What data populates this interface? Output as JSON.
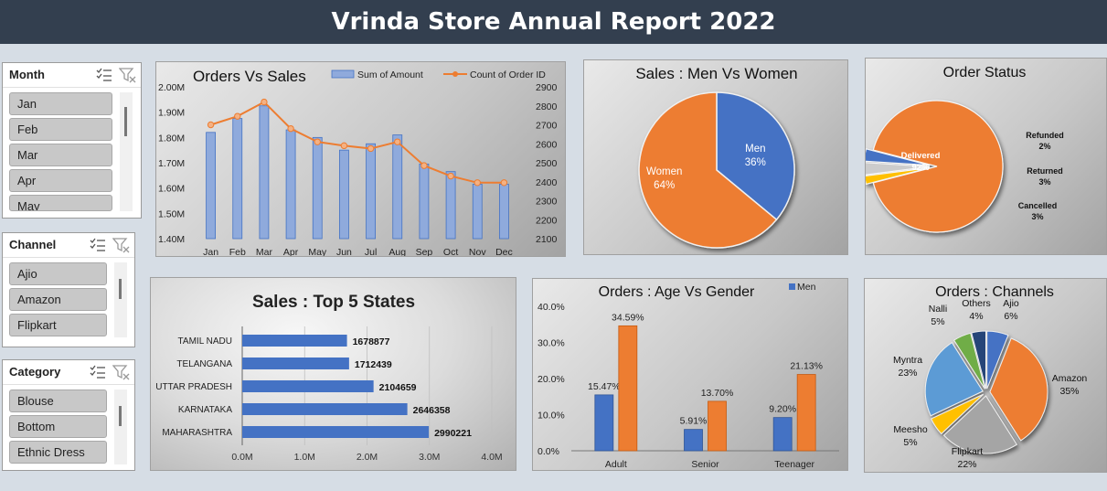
{
  "header": {
    "title": "Vrinda Store Annual Report 2022"
  },
  "slicers": {
    "month": {
      "title": "Month",
      "items": [
        "Jan",
        "Feb",
        "Mar",
        "Apr",
        "May"
      ]
    },
    "channel": {
      "title": "Channel",
      "items": [
        "Ajio",
        "Amazon",
        "Flipkart"
      ]
    },
    "category": {
      "title": "Category",
      "items": [
        "Blouse",
        "Bottom",
        "Ethnic Dress"
      ]
    },
    "icons": [
      "multi-select-icon",
      "clear-filter-icon"
    ]
  },
  "colors": {
    "blue": "#4472c4",
    "orange": "#ed7d31",
    "bar_blue": "#8faadc",
    "yellow": "#ffc000",
    "green": "#70ad47",
    "navy": "#264478",
    "light_blue": "#5b9bd5",
    "header_bg": "#333f4f"
  },
  "chart_data": [
    {
      "id": "orders_vs_sales",
      "type": "bar-line",
      "title": "Orders Vs Sales",
      "categories": [
        "Jan",
        "Feb",
        "Mar",
        "Apr",
        "May",
        "Jun",
        "Jul",
        "Aug",
        "Sep",
        "Oct",
        "Nov",
        "Dec"
      ],
      "series": [
        {
          "name": "Sum of Amount",
          "type": "bar",
          "axis": "left",
          "values": [
            1820000,
            1875000,
            1925000,
            1830000,
            1800000,
            1750000,
            1775000,
            1810000,
            1695000,
            1665000,
            1615000,
            1615000
          ]
        },
        {
          "name": "Count of Order ID",
          "type": "line",
          "axis": "right",
          "values": [
            2700,
            2745,
            2820,
            2680,
            2610,
            2590,
            2575,
            2610,
            2485,
            2430,
            2395,
            2395
          ]
        }
      ],
      "y_left_ticks": [
        "2.00M",
        "1.90M",
        "1.80M",
        "1.70M",
        "1.60M",
        "1.50M",
        "1.40M"
      ],
      "ylim_left": [
        1400000,
        2000000
      ],
      "y_right_ticks": [
        "2900",
        "2800",
        "2700",
        "2600",
        "2500",
        "2400",
        "2300",
        "2200",
        "2100"
      ],
      "ylim_right": [
        2100,
        2900
      ]
    },
    {
      "id": "men_vs_women",
      "type": "pie",
      "title": "Sales : Men Vs Women",
      "slices": [
        {
          "label": "Men",
          "value": 36,
          "text": "36%"
        },
        {
          "label": "Women",
          "value": 64,
          "text": "64%"
        }
      ]
    },
    {
      "id": "order_status",
      "type": "pie",
      "title": "Order Status",
      "slices": [
        {
          "label": "Delivered",
          "value": 92,
          "text": "92%"
        },
        {
          "label": "Refunded",
          "value": 2,
          "text": "2%"
        },
        {
          "label": "Returned",
          "value": 3,
          "text": "3%"
        },
        {
          "label": "Cancelled",
          "value": 3,
          "text": "3%"
        }
      ]
    },
    {
      "id": "top5_states",
      "type": "bar-horizontal",
      "title": "Sales : Top 5 States",
      "categories": [
        "TAMIL NADU",
        "TELANGANA",
        "UTTAR PRADESH",
        "KARNATAKA",
        "MAHARASHTRA"
      ],
      "values": [
        1678877,
        1712439,
        2104659,
        2646358,
        2990221
      ],
      "value_labels": [
        "1678877",
        "1712439",
        "2104659",
        "2646358",
        "2990221"
      ],
      "x_ticks": [
        "0.0M",
        "1.0M",
        "2.0M",
        "3.0M",
        "4.0M"
      ],
      "xlim": [
        0,
        4000000
      ]
    },
    {
      "id": "age_vs_gender",
      "type": "bar",
      "title": "Orders : Age Vs Gender",
      "categories": [
        "Adult",
        "Senior",
        "Teenager"
      ],
      "series": [
        {
          "name": "Men",
          "values": [
            15.47,
            5.91,
            9.2
          ],
          "labels": [
            "15.47%",
            "5.91%",
            "9.20%"
          ]
        },
        {
          "name": "",
          "values": [
            34.59,
            13.7,
            21.13
          ],
          "labels": [
            "34.59%",
            "13.70%",
            "21.13%"
          ]
        }
      ],
      "y_ticks": [
        "40.0%",
        "30.0%",
        "20.0%",
        "10.0%",
        "0.0%"
      ],
      "ylim": [
        0,
        40
      ]
    },
    {
      "id": "channels",
      "type": "pie",
      "title": "Orders : Channels",
      "slices": [
        {
          "label": "Ajio",
          "value": 6,
          "text": "6%"
        },
        {
          "label": "Amazon",
          "value": 35,
          "text": "35%"
        },
        {
          "label": "Flipkart",
          "value": 22,
          "text": "22%"
        },
        {
          "label": "Meesho",
          "value": 5,
          "text": "5%"
        },
        {
          "label": "Myntra",
          "value": 23,
          "text": "23%"
        },
        {
          "label": "Nalli",
          "value": 5,
          "text": "5%"
        },
        {
          "label": "Others",
          "value": 4,
          "text": "4%"
        }
      ]
    }
  ]
}
